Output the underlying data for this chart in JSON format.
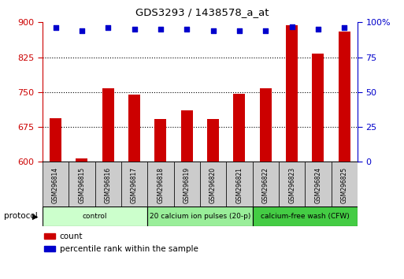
{
  "title": "GDS3293 / 1438578_a_at",
  "samples": [
    "GSM296814",
    "GSM296815",
    "GSM296816",
    "GSM296817",
    "GSM296818",
    "GSM296819",
    "GSM296820",
    "GSM296821",
    "GSM296822",
    "GSM296823",
    "GSM296824",
    "GSM296825"
  ],
  "counts": [
    693,
    607,
    758,
    745,
    692,
    710,
    692,
    746,
    758,
    893,
    832,
    880
  ],
  "percentile_ranks": [
    96,
    94,
    96,
    95,
    95,
    95,
    94,
    94,
    94,
    97,
    95,
    96
  ],
  "ylim_left": [
    600,
    900
  ],
  "ylim_right": [
    0,
    100
  ],
  "yticks_left": [
    600,
    675,
    750,
    825,
    900
  ],
  "yticks_right": [
    0,
    25,
    50,
    75,
    100
  ],
  "bar_color": "#cc0000",
  "dot_color": "#0000cc",
  "left_axis_color": "#cc0000",
  "right_axis_color": "#0000cc",
  "grid_color": "#000000",
  "label_bg_color": "#cccccc",
  "groups": [
    {
      "label": "control",
      "start": 0,
      "end": 3,
      "color": "#ccffcc"
    },
    {
      "label": "20 calcium ion pulses (20-p)",
      "start": 4,
      "end": 7,
      "color": "#99ee99"
    },
    {
      "label": "calcium-free wash (CFW)",
      "start": 8,
      "end": 11,
      "color": "#44cc44"
    }
  ],
  "protocol_label": "protocol",
  "legend_count_label": "count",
  "legend_pct_label": "percentile rank within the sample",
  "background_color": "#ffffff"
}
